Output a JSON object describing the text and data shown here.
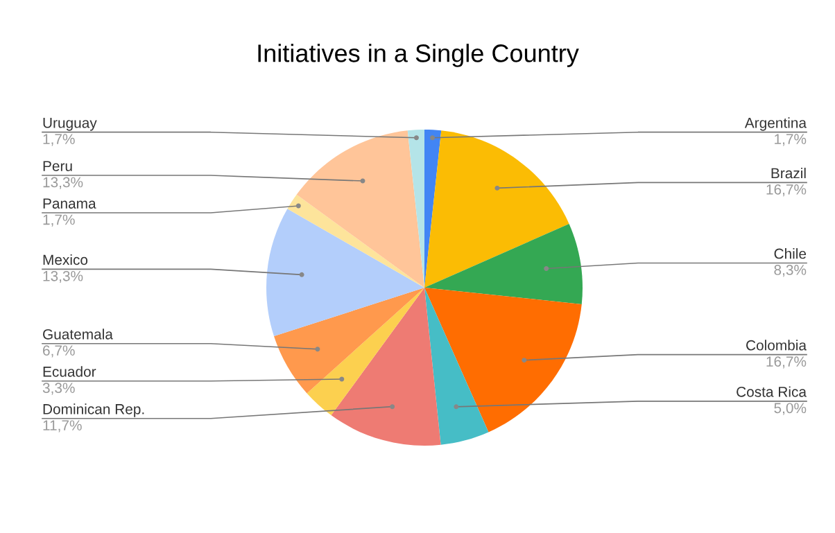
{
  "chart_data": {
    "type": "pie",
    "title": "Initiatives in a Single Country",
    "categories": [
      "Argentina",
      "Brazil",
      "Chile",
      "Colombia",
      "Costa Rica",
      "Dominican Rep.",
      "Ecuador",
      "Guatemala",
      "Mexico",
      "Panama",
      "Peru",
      "Uruguay"
    ],
    "values": [
      1.7,
      16.7,
      8.3,
      16.7,
      5.0,
      11.7,
      3.3,
      6.7,
      13.3,
      1.7,
      13.3,
      1.7
    ],
    "value_labels": [
      "1,7%",
      "16,7%",
      "8,3%",
      "16,7%",
      "5,0%",
      "11,7%",
      "3,3%",
      "6,7%",
      "13,3%",
      "1,7%",
      "13,3%",
      "1,7%"
    ],
    "colors": [
      "#4285f4",
      "#fbbc04",
      "#34a853",
      "#ff6d01",
      "#46bdc6",
      "#ee7b73",
      "#fcd04f",
      "#ff994d",
      "#b3cefb",
      "#fde49b",
      "#ffc599",
      "#b4e4e8"
    ],
    "legend": false
  }
}
